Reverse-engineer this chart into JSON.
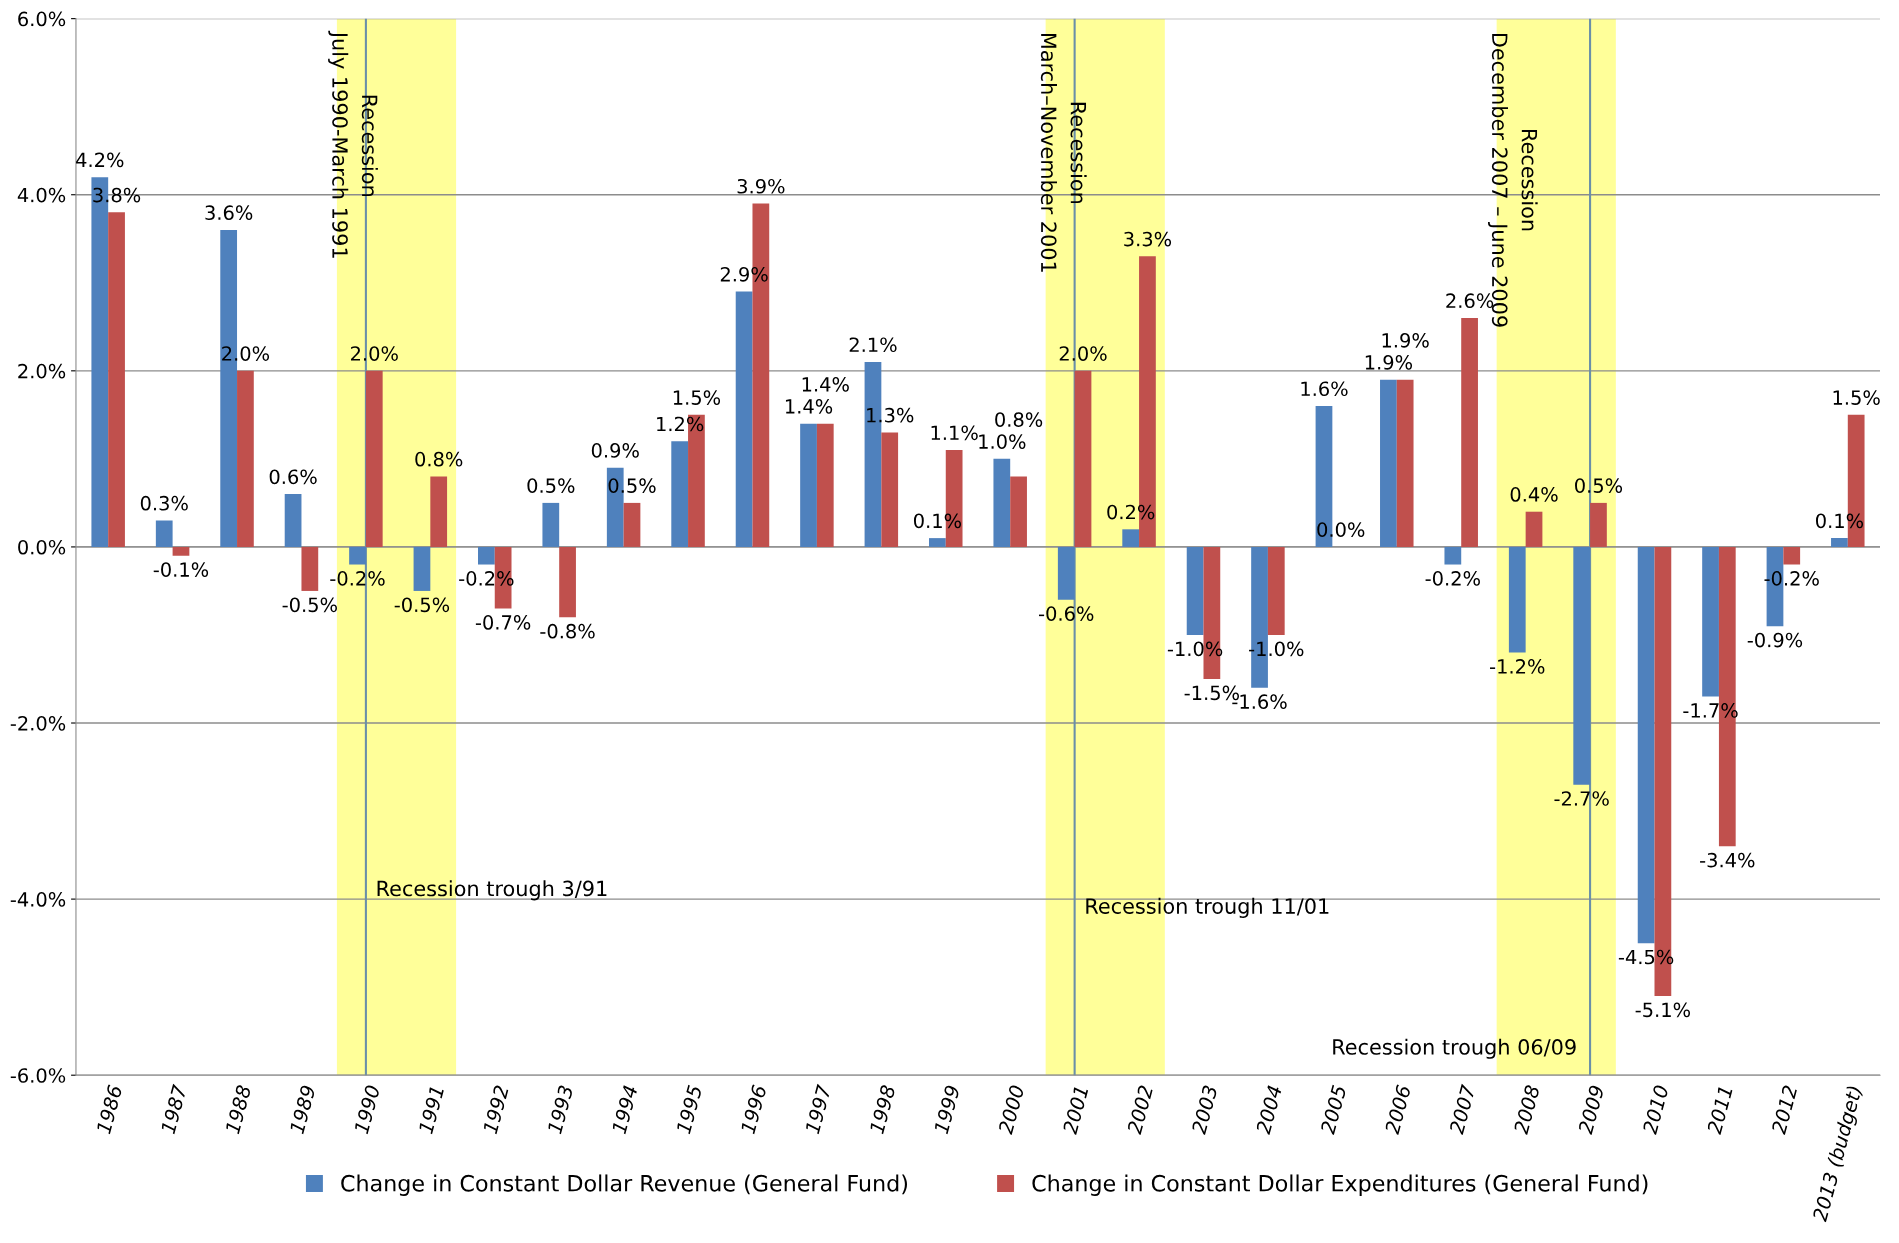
{
  "chart_data": {
    "type": "bar",
    "categories": [
      "1986",
      "1987",
      "1988",
      "1989",
      "1990",
      "1991",
      "1992",
      "1993",
      "1994",
      "1995",
      "1996",
      "1997",
      "1998",
      "1999",
      "2000",
      "2001",
      "2002",
      "2003",
      "2004",
      "2005",
      "2006",
      "2007",
      "2008",
      "2009",
      "2010",
      "2011",
      "2012",
      "2013 (budget)"
    ],
    "series": [
      {
        "name": "Change in Constant Dollar Revenue (General Fund)",
        "color": "#4f81bd",
        "values": [
          4.2,
          0.3,
          3.6,
          0.6,
          -0.2,
          -0.5,
          -0.2,
          0.5,
          0.9,
          1.2,
          2.9,
          1.4,
          2.1,
          0.1,
          1.0,
          -0.6,
          0.2,
          -1.0,
          -1.6,
          1.6,
          1.9,
          -0.2,
          -1.2,
          -2.7,
          -4.5,
          -1.7,
          -0.9,
          0.1
        ],
        "value_labels": [
          "4.2%",
          "0.3%",
          "3.6%",
          "0.6%",
          "-0.2%",
          "-0.5%",
          "-0.2%",
          "0.5%",
          "0.9%",
          "1.2%",
          "2.9%",
          "1.4%",
          "2.1%",
          "0.1%",
          "1.0%",
          "-0.6%",
          "0.2%",
          "-1.0%",
          "-1.6%",
          "1.6%",
          "1.9%",
          "-0.2%",
          "-1.2%",
          "-2.7%",
          "-4.5%",
          "-1.7%",
          "-0.9%",
          "0.1%"
        ]
      },
      {
        "name": "Change in Constant Dollar Expenditures (General Fund)",
        "color": "#c0504d",
        "values": [
          3.8,
          -0.1,
          2.0,
          -0.5,
          2.0,
          0.8,
          -0.7,
          -0.8,
          0.5,
          1.5,
          3.9,
          1.4,
          1.3,
          1.1,
          0.8,
          2.0,
          3.3,
          -1.5,
          -1.0,
          0.0,
          1.9,
          2.6,
          0.4,
          0.5,
          -5.1,
          -3.4,
          -0.2,
          1.5
        ],
        "value_labels": [
          "3.8%",
          "-0.1%",
          "2.0%",
          "-0.5%",
          "2.0%",
          "0.8%",
          "-0.7%",
          "-0.8%",
          "0.5%",
          "1.5%",
          "3.9%",
          "1.4%",
          "1.3%",
          "1.1%",
          "0.8%",
          "2.0%",
          "3.3%",
          "-1.5%",
          "-1.0%",
          "0.0%",
          "1.9%",
          "2.6%",
          "0.4%",
          "0.5%",
          "-5.1%",
          "-3.4%",
          "-0.2%",
          "1.5%"
        ]
      }
    ],
    "ylim": [
      -6,
      6
    ],
    "yticks": [
      {
        "value": -6,
        "label": "-6.0%"
      },
      {
        "value": -4,
        "label": "-4.0%"
      },
      {
        "value": -2,
        "label": "-2.0%"
      },
      {
        "value": 0,
        "label": "0.0%"
      },
      {
        "value": 2,
        "label": "2.0%"
      },
      {
        "value": 4,
        "label": "4.0%"
      },
      {
        "value": 6,
        "label": "6.0%"
      }
    ],
    "grid": "y",
    "legend": "bottom",
    "bands": [
      {
        "axis": "x",
        "from": "1990",
        "to": "1991",
        "label": "Recession\nJuly 1990-March 1991",
        "color": "#ffff99"
      },
      {
        "axis": "x",
        "from": "2001",
        "to": "2002",
        "label": "Recession\nMarch–November 2001",
        "color": "#ffff99"
      },
      {
        "axis": "x",
        "from": "2008",
        "to": "2009",
        "label": "Recession\nDecember 2007 – June 2009",
        "color": "#ffff99"
      }
    ],
    "ref_lines": [
      {
        "axis": "x",
        "value": "1990",
        "label": "Recession trough 3/91",
        "color": "#6a8fa8"
      },
      {
        "axis": "x",
        "value": "2001",
        "label": "Recession trough 11/01",
        "color": "#6a8fa8"
      },
      {
        "axis": "x",
        "value": "2009",
        "label": "Recession trough 06/09",
        "color": "#6a8fa8"
      }
    ]
  }
}
